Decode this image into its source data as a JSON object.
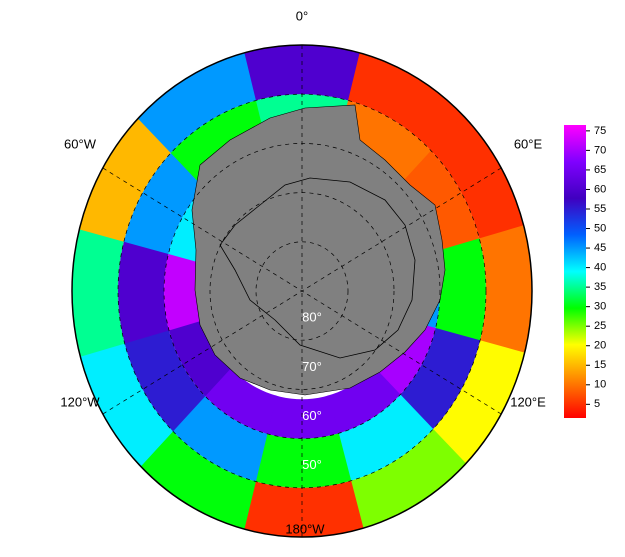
{
  "chart_data": {
    "type": "polar-grid",
    "lon_labels": [
      "0°",
      "60°E",
      "120°E",
      "180°W",
      "120°W",
      "60°W"
    ],
    "lat_labels": [
      "80°",
      "70°",
      "60°",
      "50°"
    ],
    "lat_label_values": [
      80,
      70,
      60,
      50
    ],
    "latlim": [
      40,
      90
    ],
    "lons": [
      0,
      30,
      60,
      90,
      120,
      150,
      180,
      -150,
      -120,
      -90,
      -60,
      -30
    ],
    "lat_edges": [
      40,
      50,
      60,
      68
    ],
    "values": [
      [
        60,
        35,
        20
      ],
      [
        5,
        10,
        15
      ],
      [
        5,
        8,
        5
      ],
      [
        10,
        30,
        45
      ],
      [
        20,
        55,
        70
      ],
      [
        25,
        40,
        65
      ],
      [
        5,
        30,
        65
      ],
      [
        30,
        45,
        65
      ],
      [
        40,
        55,
        60
      ],
      [
        35,
        60,
        72
      ],
      [
        15,
        45,
        40
      ],
      [
        45,
        30,
        25
      ]
    ],
    "colormap": [
      "#ff0000",
      "#ff8000",
      "#ffff00",
      "#00ff00",
      "#00ffff",
      "#0060ff",
      "#4000c0",
      "#8000ff",
      "#ff00ff"
    ],
    "clim": [
      1.5,
      76.5
    ],
    "cticks": [
      5,
      10,
      15,
      20,
      25,
      30,
      35,
      40,
      45,
      50,
      55,
      60,
      65,
      70,
      75
    ]
  }
}
